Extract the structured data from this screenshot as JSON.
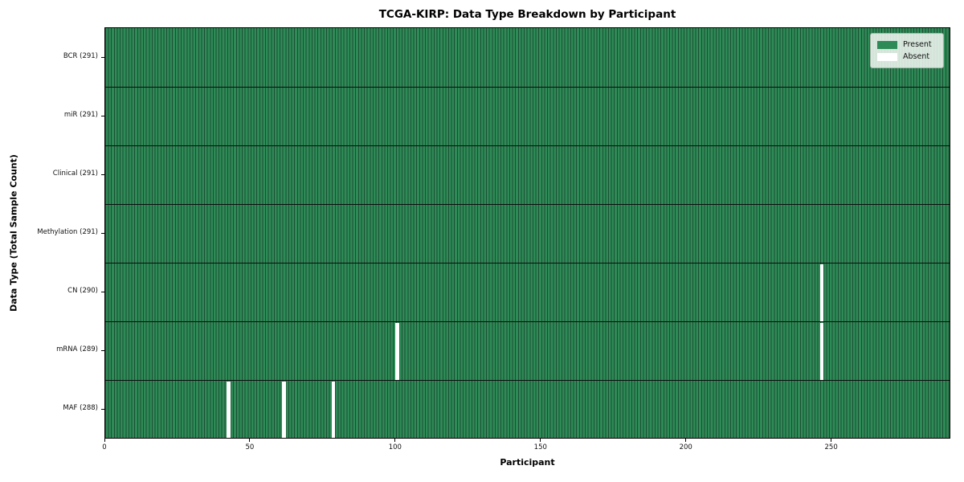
{
  "chart_data": {
    "type": "heatmap",
    "title": "TCGA-KIRP: Data Type Breakdown by Participant",
    "xlabel": "Participant",
    "ylabel": "Data Type (Total Sample Count)",
    "x_ticks": [
      0,
      50,
      100,
      150,
      200,
      250
    ],
    "xlim": [
      0,
      291
    ],
    "n_participants": 291,
    "grid": false,
    "legend_position": "upper right",
    "rows": [
      {
        "label": "BCR (291)",
        "data_type": "BCR",
        "total_samples": 291,
        "absent_participants": []
      },
      {
        "label": "miR (291)",
        "data_type": "miR",
        "total_samples": 291,
        "absent_participants": []
      },
      {
        "label": "Clinical (291)",
        "data_type": "Clinical",
        "total_samples": 291,
        "absent_participants": []
      },
      {
        "label": "Methylation (291)",
        "data_type": "Methylation",
        "total_samples": 291,
        "absent_participants": []
      },
      {
        "label": "CN (290)",
        "data_type": "CN",
        "total_samples": 290,
        "absent_participants": [
          246
        ]
      },
      {
        "label": "mRNA (289)",
        "data_type": "mRNA",
        "total_samples": 289,
        "absent_participants": [
          100,
          246
        ]
      },
      {
        "label": "MAF (288)",
        "data_type": "MAF",
        "total_samples": 288,
        "absent_participants": [
          42,
          61,
          78
        ]
      }
    ],
    "legend": [
      {
        "label": "Present",
        "color": "#2e8b57"
      },
      {
        "label": "Absent",
        "color": "#ffffff"
      }
    ],
    "colors": {
      "present": "#2e8b57",
      "absent": "#ffffff",
      "cell_edge": "#1c4e33",
      "row_separator": "#0d0d0d",
      "axis": "#000000"
    }
  }
}
